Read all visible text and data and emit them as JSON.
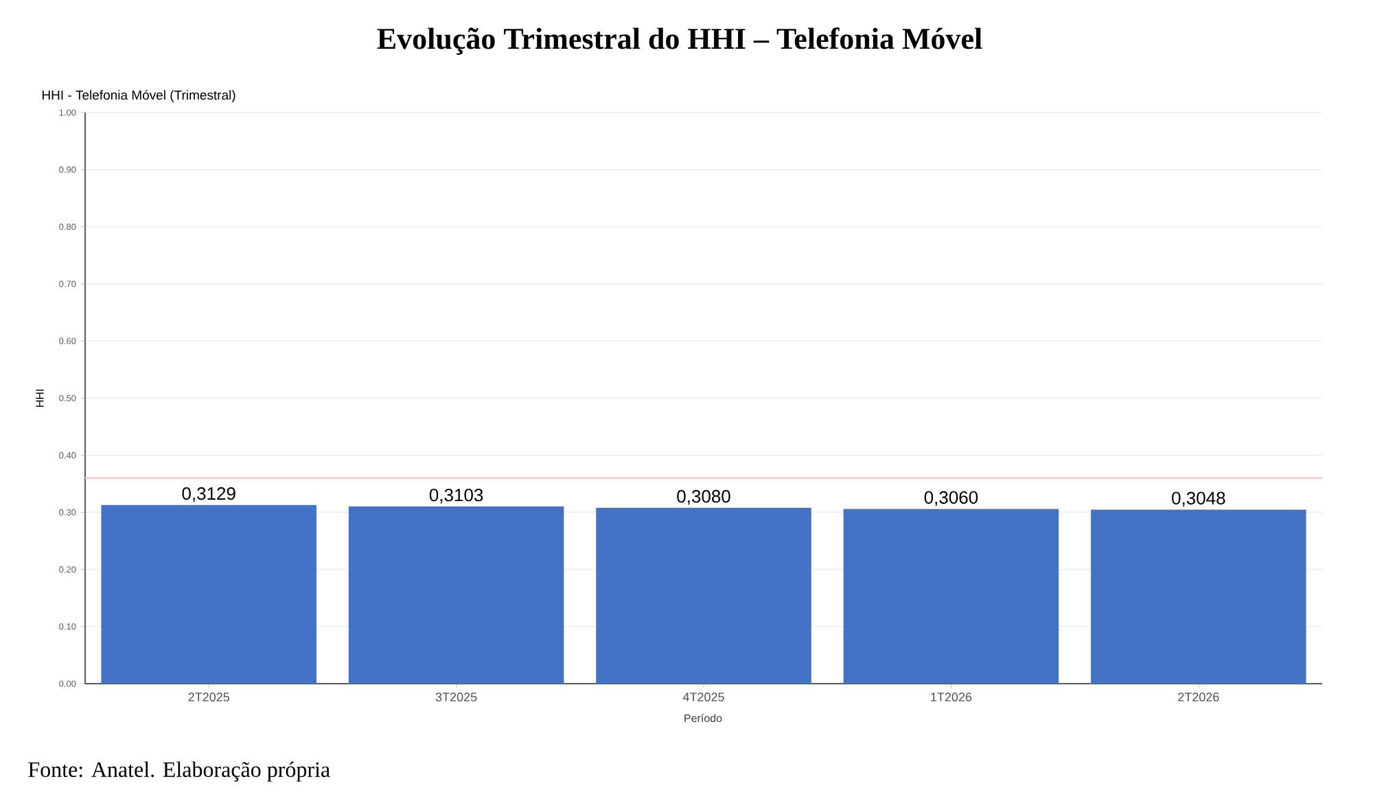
{
  "chart_data": {
    "type": "bar",
    "title": "Evolução Trimestral do HHI – Telefonia Móvel",
    "subtitle": "HHI - Telefonia Móvel (Trimestral)",
    "xlabel": "Período",
    "ylabel": "HHI",
    "categories": [
      "2T2025",
      "3T2025",
      "4T2025",
      "1T2026",
      "2T2026"
    ],
    "values": [
      0.3129,
      0.3103,
      0.308,
      0.306,
      0.3048
    ],
    "value_labels": [
      "0,3129",
      "0,3103",
      "0,3080",
      "0,3060",
      "0,3048"
    ],
    "color": "#4472c4",
    "ylim": [
      0,
      1
    ],
    "yticks": [
      {
        "value": 0,
        "label": "0.00"
      },
      {
        "value": 0.1,
        "label": "0.10"
      },
      {
        "value": 0.2,
        "label": "0.20"
      },
      {
        "value": 0.3,
        "label": "0.30"
      },
      {
        "value": 0.4,
        "label": "0.40"
      },
      {
        "value": 0.5,
        "label": "0.50"
      },
      {
        "value": 0.6,
        "label": "0.60"
      },
      {
        "value": 0.7,
        "label": "0.70"
      },
      {
        "value": 0.8,
        "label": "0.80"
      },
      {
        "value": 0.9,
        "label": "0.90"
      },
      {
        "value": 1,
        "label": "1.00"
      }
    ],
    "grid": "y",
    "ref_lines": [
      {
        "axis": "y",
        "value": 0.36,
        "color": "#f6c9c9"
      }
    ],
    "annotations": [
      "Fonte: Anatel. Elaboração própria"
    ]
  }
}
